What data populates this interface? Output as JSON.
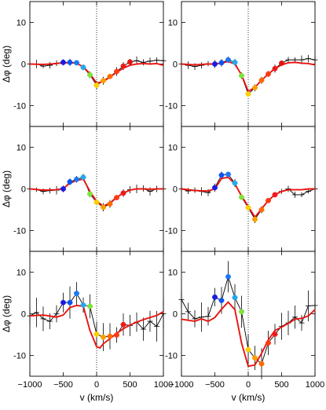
{
  "figure": {
    "ylabel": "Δφ (deg)",
    "xlabel": "v (km/s)"
  },
  "colors": {
    "model": "#e8140f",
    "data_line": "#000000",
    "center_line": "#000000"
  },
  "chart_data": [
    {
      "type": "line",
      "panel": "top-left",
      "xlim": [
        -1000,
        1000
      ],
      "ylim": [
        -15,
        15
      ],
      "xticks": [
        -1000,
        -500,
        0,
        500,
        1000
      ],
      "yticks": [
        -10,
        0,
        10
      ],
      "series": [
        {
          "role": "data",
          "x": [
            -1000,
            -900,
            -800,
            -700,
            -600,
            -500,
            -400,
            -300,
            -200,
            -100,
            0,
            100,
            200,
            300,
            400,
            500,
            600,
            700,
            800,
            900,
            1000
          ],
          "y": [
            0,
            0,
            -0.5,
            -0.3,
            0.2,
            0.4,
            0.4,
            0.3,
            -0.8,
            -2.6,
            -5.1,
            -4.0,
            -3.0,
            -1.8,
            -0.5,
            0.5,
            0.8,
            0.4,
            0.7,
            0.9,
            0.8
          ]
        },
        {
          "role": "model",
          "x": [
            -1000,
            -800,
            -600,
            -500,
            -400,
            -300,
            -200,
            -100,
            0,
            100,
            200,
            300,
            400,
            500,
            600,
            700,
            800,
            900,
            1000
          ],
          "y": [
            0,
            -0.1,
            0.1,
            0.3,
            0.3,
            0.2,
            -0.7,
            -2.3,
            -4.6,
            -4.2,
            -3.1,
            -2.0,
            -1.0,
            -0.3,
            0,
            0.1,
            0,
            0.1,
            -0.3
          ]
        },
        {
          "role": "points",
          "x": [
            -500,
            -400,
            -300,
            -200,
            -100,
            0,
            100,
            200,
            300,
            400,
            500
          ],
          "y": [
            0.4,
            0.4,
            0.3,
            -0.8,
            -2.6,
            -5.1,
            -4.0,
            -3.0,
            -1.8,
            -0.5,
            0.5
          ]
        }
      ]
    },
    {
      "type": "line",
      "panel": "top-right",
      "xlim": [
        -1000,
        1000
      ],
      "ylim": [
        -15,
        15
      ],
      "xticks": [
        -1000,
        -500,
        0,
        500,
        1000
      ],
      "yticks": [
        -10,
        0,
        10
      ],
      "series": [
        {
          "role": "data",
          "x": [
            -1000,
            -900,
            -800,
            -700,
            -600,
            -500,
            -400,
            -300,
            -200,
            -100,
            0,
            100,
            200,
            300,
            400,
            500,
            600,
            700,
            800,
            900,
            1000
          ],
          "y": [
            0,
            -0.3,
            -0.6,
            -0.3,
            0.1,
            0.0,
            0.3,
            1.0,
            0.4,
            -2.8,
            -7.2,
            -5.7,
            -3.9,
            -2.4,
            -1.1,
            0.2,
            1.0,
            1.0,
            1.0,
            1.3,
            1.0
          ]
        },
        {
          "role": "model",
          "x": [
            -1000,
            -800,
            -600,
            -500,
            -400,
            -300,
            -200,
            -100,
            0,
            100,
            200,
            300,
            400,
            500,
            600,
            700,
            800,
            900,
            1000
          ],
          "y": [
            0,
            -0.2,
            0,
            0,
            0.2,
            0.6,
            0,
            -2.6,
            -6.6,
            -5.6,
            -3.9,
            -2.4,
            -1.1,
            -0.2,
            0.3,
            0.4,
            0.2,
            0.1,
            -0.2
          ]
        },
        {
          "role": "points",
          "x": [
            -500,
            -400,
            -300,
            -200,
            -100,
            0,
            100,
            200,
            300,
            400,
            500
          ],
          "y": [
            0.0,
            0.3,
            1.0,
            0.4,
            -2.8,
            -7.2,
            -5.7,
            -3.9,
            -2.4,
            -1.1,
            0.2
          ]
        }
      ]
    },
    {
      "type": "line",
      "panel": "middle-left",
      "xlim": [
        -1000,
        1000
      ],
      "ylim": [
        -15,
        15
      ],
      "xticks": [
        -1000,
        -500,
        0,
        500,
        1000
      ],
      "yticks": [
        -10,
        0,
        10
      ],
      "series": [
        {
          "role": "data",
          "x": [
            -1000,
            -900,
            -800,
            -700,
            -600,
            -500,
            -400,
            -300,
            -200,
            -100,
            0,
            100,
            200,
            300,
            400,
            500,
            600,
            700,
            800,
            900,
            1000
          ],
          "y": [
            0,
            -0.2,
            -0.6,
            -0.4,
            -0.3,
            0.0,
            1.7,
            2.3,
            2.8,
            -1.2,
            -3.2,
            -4.4,
            -3.6,
            -2.1,
            -1.0,
            -0.2,
            0.0,
            0.1,
            -0.6,
            0.0,
            0.0
          ]
        },
        {
          "role": "model",
          "x": [
            -1000,
            -800,
            -600,
            -500,
            -400,
            -300,
            -200,
            -100,
            0,
            100,
            200,
            300,
            400,
            500,
            600,
            700,
            800,
            900,
            1000
          ],
          "y": [
            0,
            -0.3,
            -0.2,
            0.1,
            1.4,
            2.0,
            2.4,
            -0.6,
            -3.0,
            -4.1,
            -3.4,
            -2.0,
            -1.0,
            -0.3,
            0,
            0,
            -0.1,
            0,
            0
          ]
        },
        {
          "role": "points",
          "x": [
            -500,
            -400,
            -300,
            -200,
            -100,
            0,
            100,
            200,
            300,
            400
          ],
          "y": [
            0.0,
            1.7,
            2.3,
            2.8,
            -1.2,
            -3.2,
            -4.4,
            -3.6,
            -2.1,
            -1.0
          ]
        }
      ]
    },
    {
      "type": "line",
      "panel": "middle-right",
      "xlim": [
        -1000,
        1000
      ],
      "ylim": [
        -15,
        15
      ],
      "xticks": [
        -1000,
        -500,
        0,
        500,
        1000
      ],
      "yticks": [
        -10,
        0,
        10
      ],
      "series": [
        {
          "role": "data",
          "x": [
            -1000,
            -900,
            -800,
            -700,
            -600,
            -500,
            -400,
            -300,
            -200,
            -100,
            0,
            100,
            200,
            300,
            400,
            500,
            600,
            700,
            800,
            900,
            1000
          ],
          "y": [
            0,
            -0.5,
            -0.3,
            -0.6,
            -0.9,
            0.3,
            3.3,
            3.5,
            1.4,
            -2.0,
            -4.5,
            -7.3,
            -5.0,
            -2.8,
            -1.4,
            -0.6,
            0.0,
            -1.4,
            -1.4,
            -0.6,
            0.0
          ]
        },
        {
          "role": "model",
          "x": [
            -1000,
            -800,
            -600,
            -500,
            -400,
            -300,
            -200,
            -100,
            0,
            100,
            200,
            300,
            400,
            500,
            600,
            700,
            800,
            900,
            1000
          ],
          "y": [
            0,
            -0.4,
            -0.5,
            0,
            2.5,
            2.8,
            1.2,
            -1.7,
            -4.2,
            -6.8,
            -4.8,
            -2.8,
            -1.4,
            -0.6,
            -0.2,
            -0.2,
            -0.2,
            0,
            0
          ]
        },
        {
          "role": "points",
          "x": [
            -500,
            -400,
            -300,
            -200,
            -100,
            0,
            100,
            200,
            300,
            400
          ],
          "y": [
            0.3,
            3.3,
            3.5,
            1.4,
            -2.0,
            -4.5,
            -7.3,
            -5.0,
            -2.8,
            -1.4
          ]
        }
      ]
    },
    {
      "type": "line",
      "panel": "bottom-left",
      "xlim": [
        -1000,
        1000
      ],
      "ylim": [
        -15,
        15
      ],
      "xticks": [
        -1000,
        -500,
        0,
        500,
        1000
      ],
      "yticks": [
        -10,
        0,
        10
      ],
      "series": [
        {
          "role": "data",
          "x": [
            -1000,
            -900,
            -800,
            -700,
            -600,
            -500,
            -400,
            -300,
            -200,
            -100,
            0,
            100,
            200,
            300,
            400,
            500,
            600,
            700,
            800,
            900,
            1000
          ],
          "y": [
            -0.5,
            0.3,
            -1.2,
            -1.8,
            0.0,
            2.7,
            2.7,
            4.9,
            2.1,
            1.8,
            -4.9,
            -5.6,
            -5.4,
            -5.1,
            -2.6,
            -2.8,
            -2.0,
            -3.7,
            -1.8,
            -3.0,
            0.0
          ]
        },
        {
          "role": "model",
          "x": [
            -1000,
            -800,
            -600,
            -500,
            -400,
            -300,
            -200,
            -100,
            0,
            50,
            100,
            200,
            300,
            400,
            500,
            600,
            700,
            800,
            900,
            1000
          ],
          "y": [
            -0.5,
            -0.3,
            -0.8,
            -0.3,
            1.5,
            2.0,
            1.8,
            -4.0,
            -7.9,
            -8.2,
            -7.2,
            -6.0,
            -4.7,
            -3.6,
            -2.7,
            -2.0,
            -1.4,
            -0.9,
            -0.4,
            0.5
          ]
        },
        {
          "role": "points",
          "x": [
            -500,
            -400,
            -300,
            -200,
            -100,
            0,
            100,
            200,
            300,
            400
          ],
          "y": [
            2.7,
            2.7,
            4.9,
            2.1,
            1.8,
            -4.9,
            -5.6,
            -5.4,
            -5.1,
            -2.6
          ]
        }
      ]
    },
    {
      "type": "line",
      "panel": "bottom-right",
      "xlim": [
        -1000,
        1000
      ],
      "ylim": [
        -15,
        15
      ],
      "xticks": [
        -1000,
        -500,
        0,
        500,
        1000
      ],
      "yticks": [
        -10,
        0,
        10
      ],
      "series": [
        {
          "role": "data",
          "x": [
            -1000,
            -900,
            -800,
            -700,
            -600,
            -500,
            -400,
            -300,
            -200,
            -100,
            0,
            100,
            200,
            300,
            400,
            500,
            600,
            700,
            800,
            900,
            1000
          ],
          "y": [
            3.4,
            0.5,
            -1.2,
            -0.8,
            -0.6,
            4.0,
            3.2,
            8.9,
            3.9,
            0.5,
            -8.6,
            -10.6,
            -12.0,
            -7.0,
            -4.9,
            -3.0,
            -2.2,
            -0.8,
            -2.2,
            1.9,
            2.0
          ]
        },
        {
          "role": "model",
          "x": [
            -1000,
            -800,
            -700,
            -600,
            -500,
            -400,
            -300,
            -200,
            -100,
            0,
            100,
            200,
            300,
            400,
            500,
            600,
            700,
            800,
            900,
            1000
          ],
          "y": [
            -1.3,
            -1.8,
            -1.2,
            -1.8,
            -0.9,
            1.1,
            2.8,
            1.0,
            -7.0,
            -12.6,
            -12.3,
            -9.5,
            -6.3,
            -4.0,
            -3.2,
            -2.3,
            -1.3,
            -1.1,
            -0.5,
            1.0
          ]
        },
        {
          "role": "points",
          "x": [
            -500,
            -400,
            -300,
            -200,
            -100,
            0,
            100,
            200,
            300,
            400
          ],
          "y": [
            4.0,
            3.2,
            8.9,
            3.9,
            0.5,
            -8.6,
            -10.6,
            -12.0,
            -7.0,
            -4.9
          ]
        }
      ]
    }
  ]
}
